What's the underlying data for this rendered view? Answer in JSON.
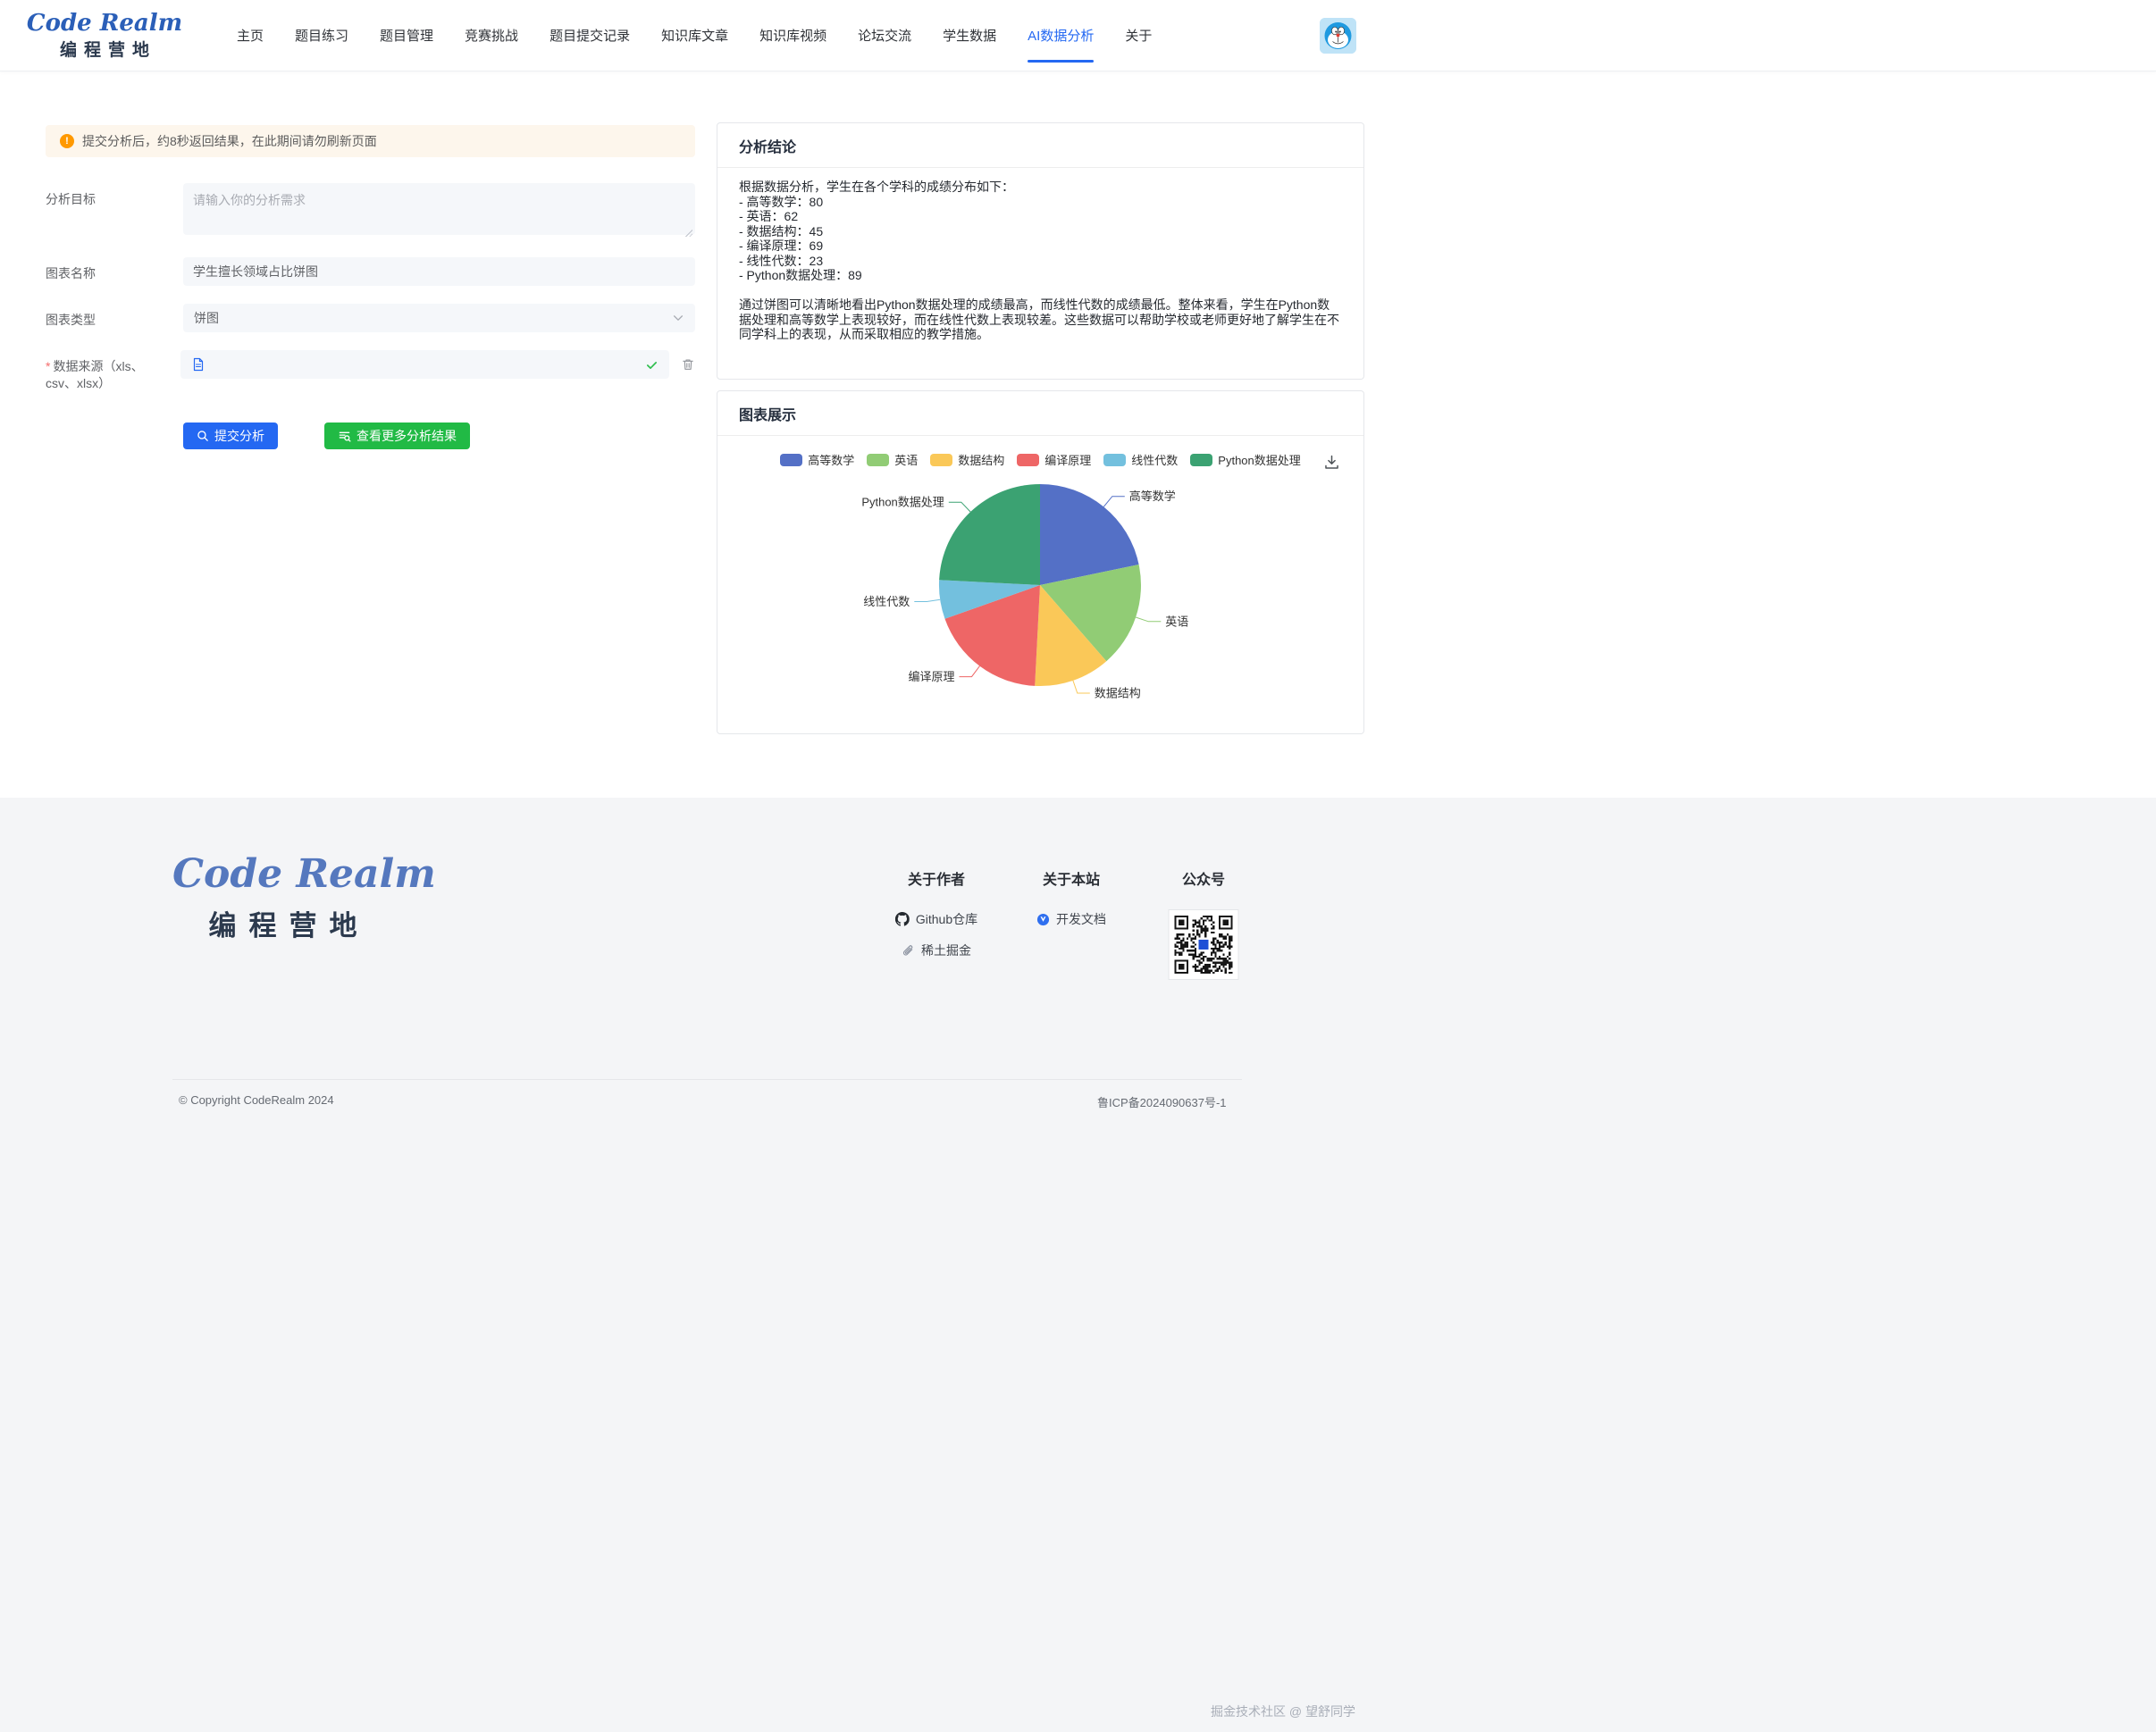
{
  "nav": {
    "logo_line1": "Code Realm",
    "logo_line2": "编程营地",
    "items": [
      {
        "label": "主页",
        "active": false
      },
      {
        "label": "题目练习",
        "active": false
      },
      {
        "label": "题目管理",
        "active": false
      },
      {
        "label": "竞赛挑战",
        "active": false
      },
      {
        "label": "题目提交记录",
        "active": false
      },
      {
        "label": "知识库文章",
        "active": false
      },
      {
        "label": "知识库视频",
        "active": false
      },
      {
        "label": "论坛交流",
        "active": false
      },
      {
        "label": "学生数据",
        "active": false
      },
      {
        "label": "AI数据分析",
        "active": true
      },
      {
        "label": "关于",
        "active": false
      }
    ]
  },
  "form": {
    "alert_text": "提交分析后，约8秒返回结果，在此期间请勿刷新页面",
    "goal_label": "分析目标",
    "goal_placeholder": "请输入你的分析需求",
    "chart_name_label": "图表名称",
    "chart_name_value": "学生擅长领域占比饼图",
    "chart_type_label": "图表类型",
    "chart_type_value": "饼图",
    "data_source_required_mark": "*",
    "data_source_label": "数据来源（xls、csv、xlsx）",
    "submit_button": "提交分析",
    "more_button": "查看更多分析结果"
  },
  "analysis": {
    "title": "分析结论",
    "body_lines": [
      "根据数据分析，学生在各个学科的成绩分布如下：",
      "- 高等数学：80",
      "- 英语：62",
      "- 数据结构：45",
      "- 编译原理：69",
      "- 线性代数：23",
      "- Python数据处理：89",
      "",
      "通过饼图可以清晰地看出Python数据处理的成绩最高，而线性代数的成绩最低。整体来看，学生在Python数据处理和高等数学上表现较好，而在线性代数上表现较差。这些数据可以帮助学校或老师更好地了解学生在不同学科上的表现，从而采取相应的教学措施。"
    ]
  },
  "chart_panel": {
    "title": "图表展示"
  },
  "chart_data": {
    "type": "pie",
    "title": "学生擅长领域占比饼图",
    "categories": [
      "高等数学",
      "英语",
      "数据结构",
      "编译原理",
      "线性代数",
      "Python数据处理"
    ],
    "values": [
      80,
      62,
      45,
      69,
      23,
      89
    ],
    "colors": [
      "#5470c6",
      "#91cc75",
      "#fac858",
      "#ee6666",
      "#73c0de",
      "#3ba272"
    ],
    "legend_position": "top",
    "label_position": "outside"
  },
  "footer": {
    "logo_line1": "Code Realm",
    "logo_line2": "编程营地",
    "col_author_title": "关于作者",
    "github_label": "Github仓库",
    "juejin_label": "稀土掘金",
    "col_site_title": "关于本站",
    "docs_label": "开发文档",
    "qr_title": "公众号",
    "copyright": "© Copyright CodeRealm 2024",
    "icp": "鲁ICP备2024090637号-1",
    "watermark": "掘金技术社区 @ 望舒同学"
  }
}
